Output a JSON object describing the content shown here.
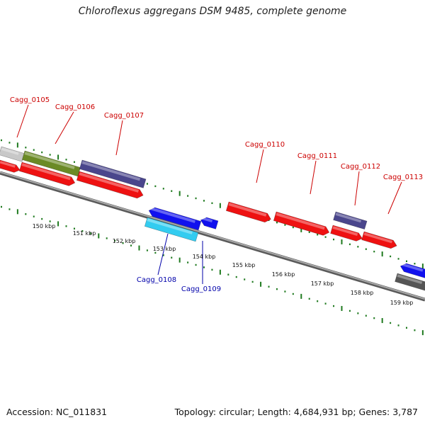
{
  "title": "Chloroflexus aggregans DSM 9485, complete genome",
  "footer": {
    "accession": "Accession: NC_011831",
    "stats": "Topology: circular; Length: 4,684,931 bp; Genes: 3,787"
  },
  "colors": {
    "forward_gene": "#ee1111",
    "reverse_gene": "#1111ee",
    "reverse_gene_light": "#33ccf0",
    "navy_feature": "#4a468c",
    "olive_feature": "#6b8a26",
    "grey_feature": "#c8c8c8",
    "dark_feature": "#555555",
    "tick": "#1f7a1f",
    "forward_label": "#cc0000",
    "reverse_label": "#0000aa",
    "backbone": "#808080"
  },
  "forward_labels": [
    "Cagg_0105",
    "Cagg_0106",
    "Cagg_0107",
    "Cagg_0110",
    "Cagg_0111",
    "Cagg_0112",
    "Cagg_0113"
  ],
  "reverse_labels": [
    "Cagg_0108",
    "Cagg_0109"
  ],
  "kbp_labels": [
    "150 kbp",
    "151 kbp",
    "152 kbp",
    "153 kbp",
    "154 kbp",
    "155 kbp",
    "156 kbp",
    "157 kbp",
    "158 kbp",
    "159 kbp"
  ]
}
